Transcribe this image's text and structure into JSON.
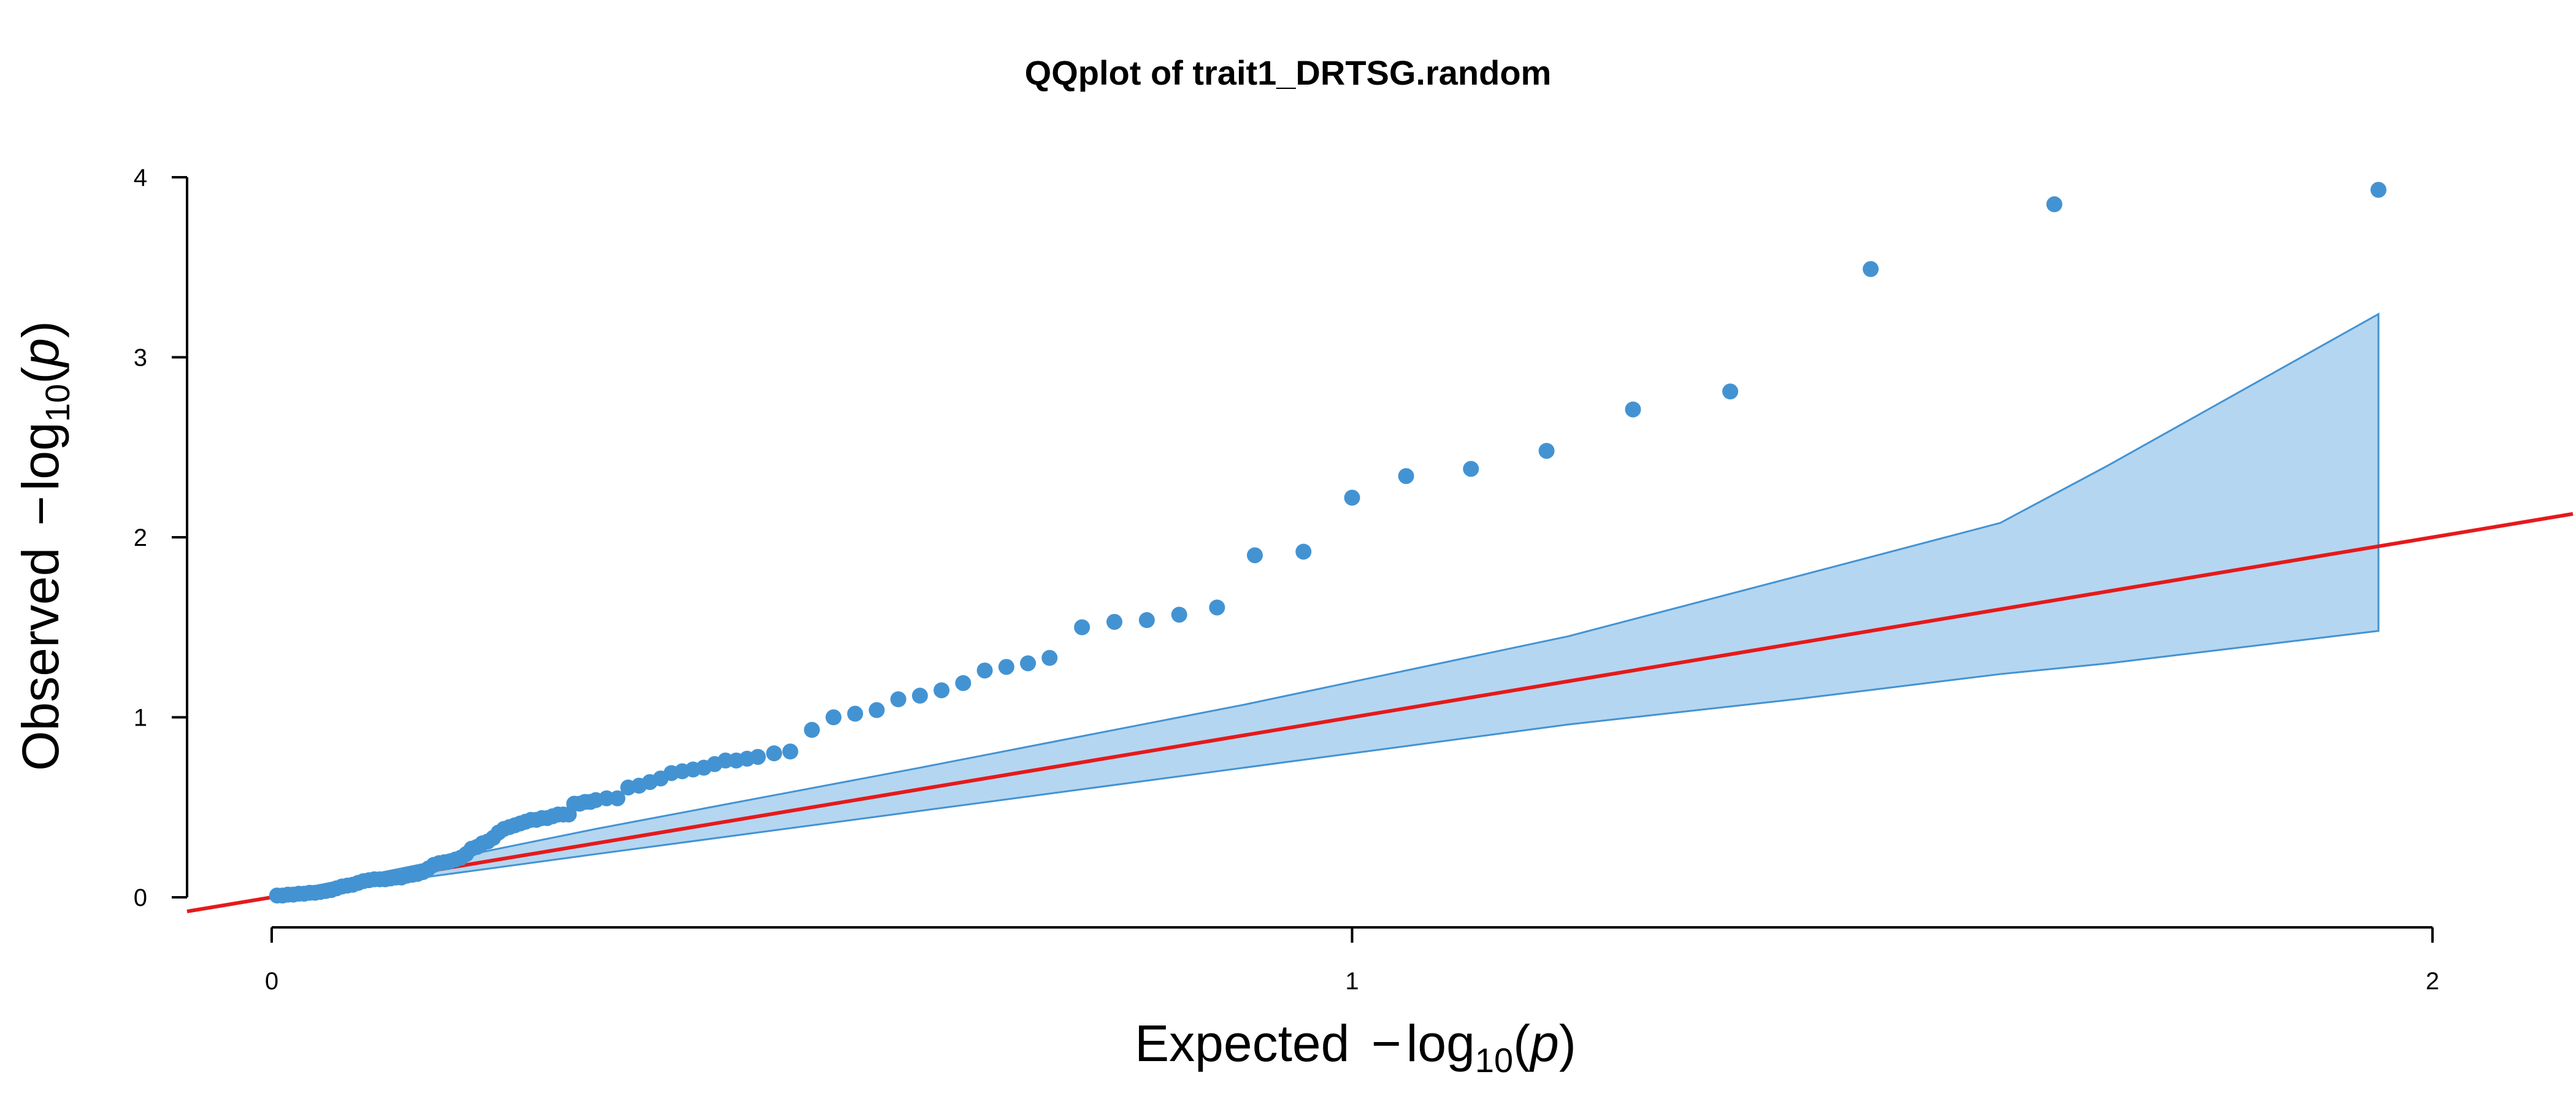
{
  "chart_data": {
    "type": "scatter",
    "title": "QQplot of trait1_DRTSG.random",
    "xlabel": {
      "prefix": "Expected ",
      "minus": "−",
      "log": "log",
      "sub": "10",
      "open": "(",
      "var": "p",
      "close": ")"
    },
    "ylabel": {
      "prefix": "Observed ",
      "minus": "−",
      "log": "log",
      "sub": "10",
      "open": "(",
      "var": "p",
      "close": ")"
    },
    "xlim": [
      0,
      2
    ],
    "ylim": [
      0,
      4
    ],
    "x_ticks": [
      0,
      1,
      2
    ],
    "x_tick_labels": [
      "0",
      "1",
      "2"
    ],
    "y_ticks": [
      0,
      1,
      2,
      3,
      4
    ],
    "y_tick_labels": [
      "0",
      "1",
      "2",
      "3",
      "4"
    ],
    "grid": false,
    "colors": {
      "points": "#4393D3",
      "band_fill": "#B5D6F0",
      "band_stroke": "#4393D3",
      "reference_line": "#E41A1C"
    },
    "reference_line": {
      "slope": 1,
      "intercept": 0
    },
    "confidence_band": {
      "x": [
        0.005,
        0.3,
        0.6,
        0.9,
        1.2,
        1.41,
        1.6,
        1.7,
        1.95
      ],
      "upper": [
        0.02,
        0.38,
        0.72,
        1.07,
        1.45,
        1.78,
        2.08,
        2.4,
        3.24
      ],
      "lower": [
        0.0,
        0.24,
        0.48,
        0.72,
        0.96,
        1.1,
        1.24,
        1.3,
        1.48
      ]
    },
    "points": {
      "x": [
        0.005,
        0.01,
        0.015,
        0.02,
        0.025,
        0.03,
        0.035,
        0.04,
        0.045,
        0.05,
        0.055,
        0.06,
        0.065,
        0.07,
        0.075,
        0.08,
        0.085,
        0.09,
        0.095,
        0.1,
        0.105,
        0.11,
        0.115,
        0.12,
        0.125,
        0.13,
        0.135,
        0.14,
        0.145,
        0.15,
        0.155,
        0.16,
        0.165,
        0.17,
        0.175,
        0.18,
        0.185,
        0.19,
        0.195,
        0.2,
        0.205,
        0.21,
        0.215,
        0.22,
        0.225,
        0.23,
        0.235,
        0.24,
        0.245,
        0.25,
        0.255,
        0.26,
        0.265,
        0.27,
        0.275,
        0.28,
        0.285,
        0.29,
        0.295,
        0.3,
        0.31,
        0.32,
        0.33,
        0.34,
        0.35,
        0.36,
        0.37,
        0.38,
        0.39,
        0.4,
        0.41,
        0.42,
        0.43,
        0.44,
        0.45,
        0.465,
        0.48,
        0.5,
        0.52,
        0.54,
        0.56,
        0.58,
        0.6,
        0.62,
        0.64,
        0.66,
        0.68,
        0.7,
        0.72,
        0.75,
        0.78,
        0.81,
        0.84,
        0.875,
        0.91,
        0.955,
        1.0,
        1.05,
        1.11,
        1.18,
        1.26,
        1.35,
        1.48,
        1.65,
        1.95
      ],
      "y": [
        0.01,
        0.01,
        0.015,
        0.015,
        0.02,
        0.02,
        0.025,
        0.025,
        0.03,
        0.035,
        0.04,
        0.05,
        0.06,
        0.065,
        0.07,
        0.08,
        0.09,
        0.095,
        0.1,
        0.1,
        0.1,
        0.105,
        0.11,
        0.11,
        0.12,
        0.125,
        0.13,
        0.14,
        0.16,
        0.18,
        0.19,
        0.195,
        0.2,
        0.21,
        0.22,
        0.24,
        0.27,
        0.28,
        0.3,
        0.31,
        0.33,
        0.36,
        0.38,
        0.39,
        0.4,
        0.41,
        0.42,
        0.43,
        0.43,
        0.44,
        0.44,
        0.45,
        0.46,
        0.46,
        0.46,
        0.52,
        0.52,
        0.53,
        0.53,
        0.54,
        0.55,
        0.55,
        0.61,
        0.62,
        0.64,
        0.66,
        0.69,
        0.7,
        0.71,
        0.72,
        0.74,
        0.76,
        0.76,
        0.77,
        0.78,
        0.8,
        0.81,
        0.93,
        1.0,
        1.02,
        1.04,
        1.1,
        1.12,
        1.15,
        1.19,
        1.26,
        1.28,
        1.3,
        1.33,
        1.5,
        1.53,
        1.54,
        1.57,
        1.61,
        1.9,
        1.92,
        2.22,
        2.34,
        2.38,
        2.48,
        2.71,
        2.81,
        3.49,
        3.85,
        3.93
      ]
    }
  }
}
